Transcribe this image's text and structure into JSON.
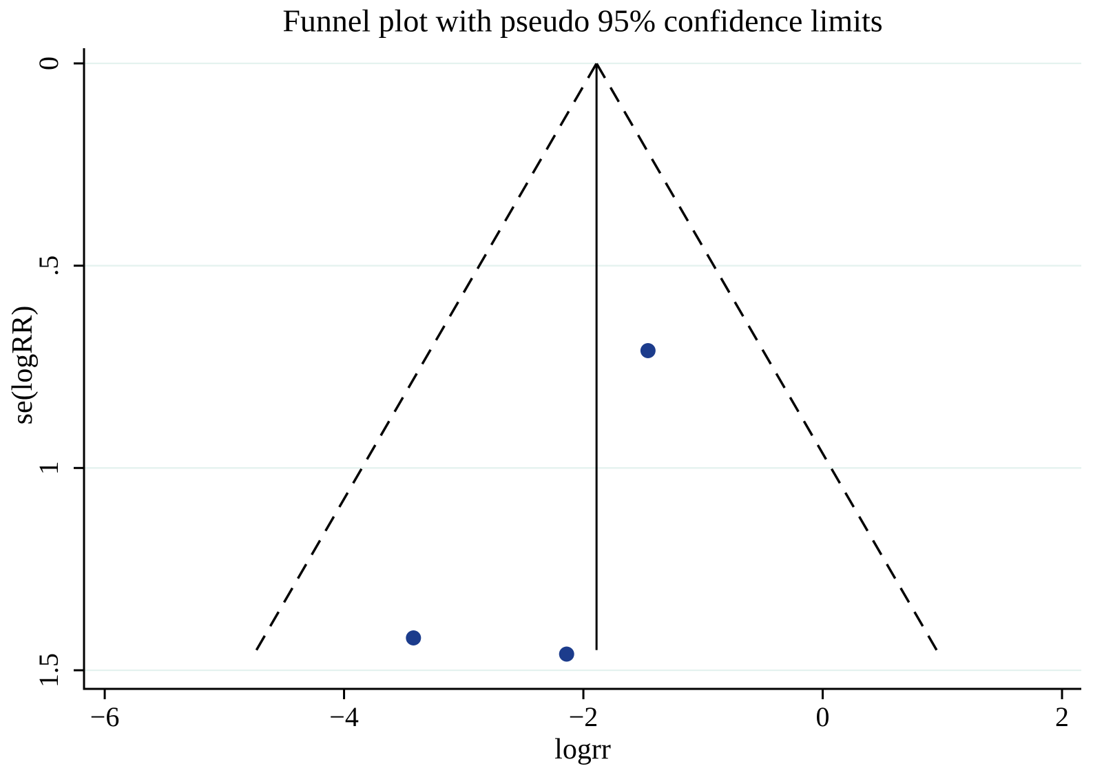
{
  "chart_data": {
    "type": "scatter",
    "subtype": "funnel-plot",
    "title": "Funnel plot with pseudo 95% confidence limits",
    "xlabel": "logrr",
    "ylabel": "se(logRR)",
    "legend": "none",
    "grid": "horizontal-only",
    "x_axis": {
      "min": -6.173,
      "max": 2.161,
      "ticks": [
        {
          "value": -6,
          "label": "−6"
        },
        {
          "value": -4,
          "label": "−4"
        },
        {
          "value": -2,
          "label": "−2"
        },
        {
          "value": 0,
          "label": "0"
        },
        {
          "value": 2,
          "label": "2"
        }
      ]
    },
    "y_axis": {
      "min": -0.0375,
      "max": 1.546,
      "inverted": true,
      "ticks": [
        {
          "value": 0,
          "label": "0"
        },
        {
          "value": 0.5,
          "label": ".5"
        },
        {
          "value": 1,
          "label": "1"
        },
        {
          "value": 1.5,
          "label": "1.5"
        }
      ]
    },
    "points": [
      {
        "logrr": -1.46,
        "se": 0.71
      },
      {
        "logrr": -3.42,
        "se": 1.42
      },
      {
        "logrr": -2.14,
        "se": 1.46
      }
    ],
    "pooled_logrr": -1.89,
    "funnel": {
      "z": 1.96,
      "se_max": 1.45,
      "style": "dashed"
    },
    "colors": {
      "marker": "#1c3c8c",
      "grid": "#e4f2ef",
      "axis": "#000000",
      "background": "#ffffff"
    }
  }
}
